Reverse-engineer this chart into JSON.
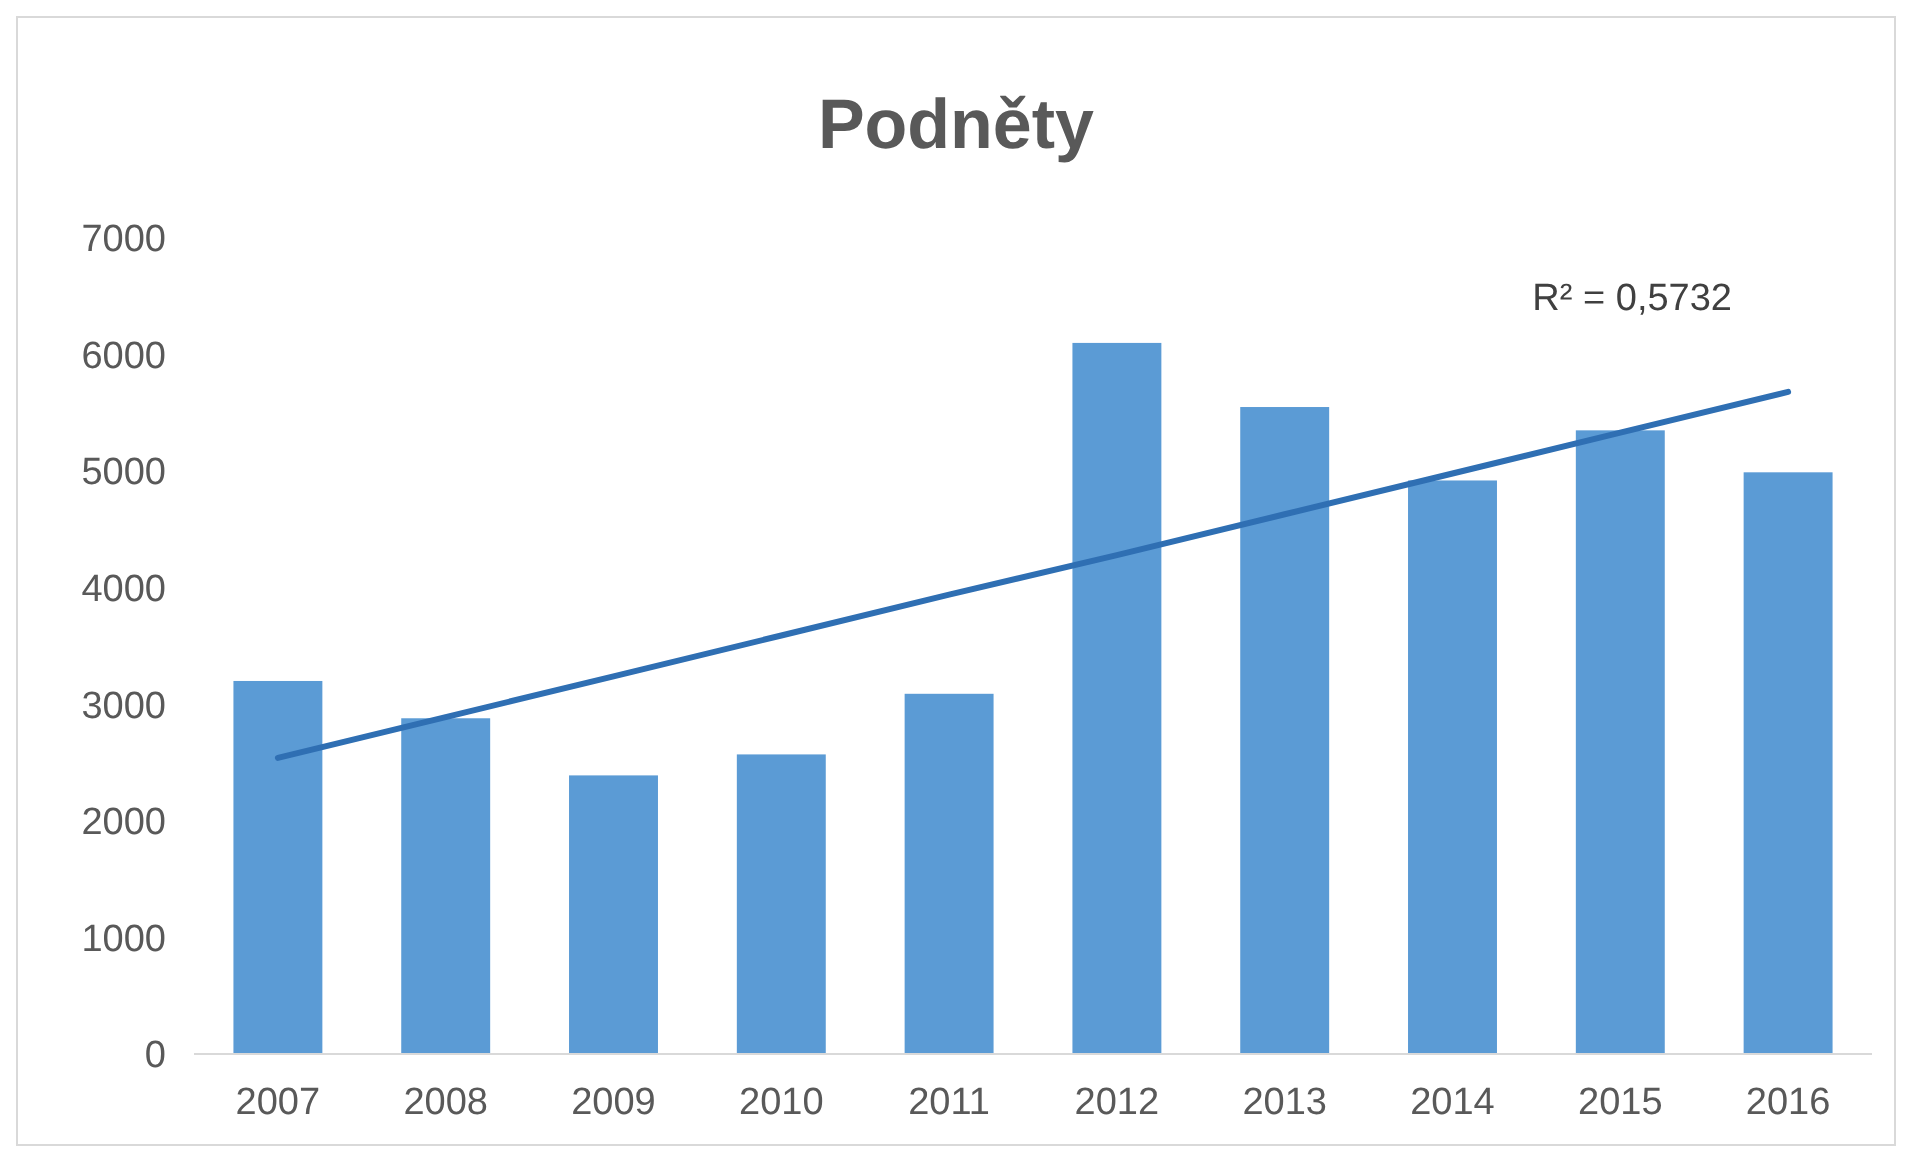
{
  "chart_data": {
    "type": "bar",
    "title": "Podněty",
    "categories": [
      "2007",
      "2008",
      "2009",
      "2010",
      "2011",
      "2012",
      "2013",
      "2014",
      "2015",
      "2016"
    ],
    "series": [
      {
        "color": "#5b9bd5",
        "values": [
          3200,
          2880,
          2390,
          2570,
          3090,
          6100,
          5550,
          4920,
          5350,
          4990
        ]
      },
      {
        "type": "line",
        "color": "#2f6fb3",
        "values": [
          2540,
          2890,
          3240,
          3590,
          3940,
          4280,
          4630,
          4980,
          5330,
          5680
        ]
      }
    ],
    "annotations": [
      "R² = 0,5732"
    ],
    "ylim": [
      0,
      7000
    ],
    "yticks": [
      0,
      1000,
      2000,
      3000,
      4000,
      5000,
      6000,
      7000
    ],
    "grid": false
  }
}
